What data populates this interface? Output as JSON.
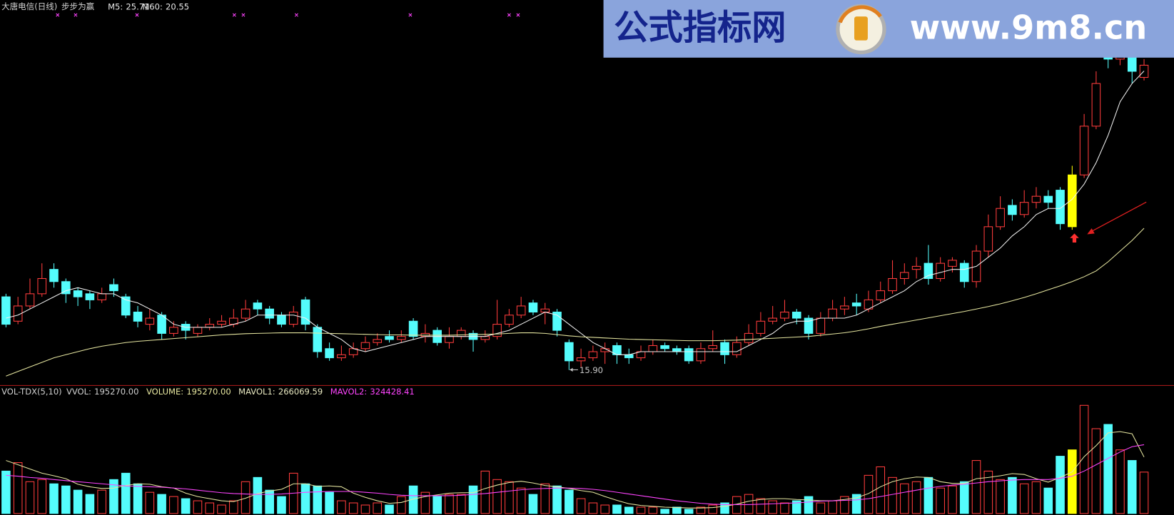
{
  "chart_data": [
    {
      "type": "candlestick",
      "title": "大唐电信(日线)",
      "subtitle": "步步为赢",
      "up_color": "#ff3c3c",
      "down_color": "#54fcfc",
      "highlight_index": 89,
      "highlight_color": "#ffff00",
      "ylim": [
        15.39,
        28.04
      ],
      "low_annotation": "15.90",
      "open": [
        18.3,
        17.5,
        18.0,
        18.4,
        19.2,
        18.8,
        18.5,
        18.4,
        18.2,
        18.7,
        18.3,
        17.8,
        17.4,
        17.7,
        17.1,
        17.4,
        17.1,
        17.3,
        17.4,
        17.4,
        17.6,
        18.1,
        17.9,
        17.7,
        17.4,
        18.2,
        17.3,
        16.6,
        16.3,
        16.4,
        16.6,
        16.8,
        17.0,
        16.9,
        17.5,
        17.0,
        17.2,
        16.8,
        17.0,
        17.1,
        16.9,
        17.0,
        17.4,
        17.7,
        18.1,
        17.8,
        17.8,
        16.8,
        16.2,
        16.3,
        16.5,
        16.7,
        16.4,
        16.3,
        16.5,
        16.7,
        16.6,
        16.6,
        16.2,
        16.6,
        16.8,
        16.4,
        16.8,
        17.1,
        17.5,
        17.6,
        17.8,
        17.6,
        17.1,
        17.6,
        17.9,
        18.1,
        17.9,
        18.2,
        18.5,
        18.9,
        19.2,
        19.4,
        18.9,
        19.3,
        19.4,
        18.8,
        19.8,
        20.6,
        21.3,
        21.0,
        21.4,
        21.6,
        21.8,
        20.6,
        22.3,
        23.9,
        26.9,
        26.1,
        26.9,
        25.5
      ],
      "high": [
        18.4,
        18.3,
        18.9,
        19.4,
        19.4,
        18.9,
        18.6,
        18.5,
        18.6,
        18.9,
        18.4,
        18.0,
        17.9,
        17.8,
        17.5,
        17.5,
        17.4,
        17.6,
        17.7,
        17.9,
        18.2,
        18.2,
        18.0,
        17.8,
        18.0,
        18.3,
        17.4,
        16.8,
        16.7,
        16.8,
        17.0,
        17.1,
        17.2,
        17.2,
        17.6,
        17.4,
        17.3,
        17.3,
        17.3,
        17.2,
        17.2,
        18.2,
        17.9,
        18.3,
        18.2,
        18.1,
        17.9,
        16.9,
        16.6,
        16.7,
        16.8,
        16.8,
        16.6,
        16.7,
        16.9,
        16.8,
        16.7,
        16.7,
        16.8,
        17.2,
        16.9,
        17.0,
        17.4,
        17.8,
        18.0,
        18.2,
        17.9,
        17.7,
        17.8,
        18.2,
        18.3,
        18.4,
        18.5,
        18.8,
        19.5,
        19.4,
        19.6,
        20.0,
        19.6,
        19.6,
        19.5,
        20.0,
        21.0,
        21.6,
        21.5,
        21.8,
        21.9,
        21.8,
        21.9,
        22.6,
        24.3,
        25.7,
        27.2,
        27.0,
        27.1,
        26.1
      ],
      "low": [
        17.3,
        17.4,
        17.9,
        18.3,
        18.6,
        18.1,
        18.0,
        17.9,
        18.1,
        18.3,
        17.6,
        17.3,
        17.2,
        16.9,
        17.0,
        16.9,
        17.0,
        17.2,
        17.3,
        17.3,
        17.5,
        17.7,
        17.4,
        17.3,
        17.3,
        17.2,
        16.3,
        16.2,
        16.2,
        16.3,
        16.5,
        16.7,
        16.8,
        16.8,
        16.9,
        16.8,
        16.7,
        16.6,
        16.9,
        16.5,
        16.8,
        16.9,
        17.3,
        17.6,
        17.7,
        17.4,
        17.0,
        15.9,
        16.0,
        16.2,
        16.1,
        16.1,
        16.1,
        16.2,
        16.4,
        16.5,
        16.4,
        16.1,
        16.1,
        16.5,
        16.1,
        16.3,
        16.7,
        17.0,
        17.4,
        17.5,
        17.4,
        16.9,
        17.0,
        17.5,
        17.7,
        17.7,
        17.8,
        18.1,
        18.4,
        18.7,
        18.9,
        18.7,
        18.8,
        19.1,
        18.6,
        18.6,
        19.6,
        20.5,
        20.8,
        20.9,
        21.2,
        21.2,
        20.5,
        20.5,
        22.2,
        23.8,
        25.8,
        25.9,
        25.3,
        25.4
      ],
      "close": [
        17.4,
        18.0,
        18.4,
        18.9,
        18.8,
        18.4,
        18.3,
        18.2,
        18.4,
        18.5,
        17.7,
        17.5,
        17.6,
        17.1,
        17.3,
        17.2,
        17.3,
        17.4,
        17.5,
        17.6,
        17.9,
        17.9,
        17.6,
        17.4,
        17.8,
        17.4,
        16.5,
        16.3,
        16.4,
        16.6,
        16.8,
        16.9,
        16.9,
        17.0,
        17.0,
        17.1,
        16.8,
        17.0,
        17.2,
        16.9,
        17.0,
        17.4,
        17.7,
        18.0,
        17.8,
        17.9,
        17.2,
        16.2,
        16.3,
        16.5,
        16.6,
        16.4,
        16.3,
        16.5,
        16.7,
        16.6,
        16.5,
        16.2,
        16.6,
        16.7,
        16.4,
        16.8,
        17.1,
        17.5,
        17.6,
        17.8,
        17.6,
        17.1,
        17.6,
        17.9,
        18.0,
        18.0,
        18.2,
        18.5,
        18.9,
        19.1,
        19.3,
        18.9,
        19.4,
        19.5,
        18.8,
        19.8,
        20.6,
        21.2,
        21.0,
        21.4,
        21.6,
        21.4,
        20.7,
        22.3,
        23.9,
        25.3,
        26.1,
        26.7,
        25.7,
        25.9
      ],
      "series": [
        {
          "name": "M5:",
          "current": "25.71",
          "color": "#f0f0f0",
          "values": [
            17.6,
            17.7,
            17.9,
            18.1,
            18.3,
            18.5,
            18.6,
            18.5,
            18.4,
            18.4,
            18.2,
            18.1,
            17.9,
            17.7,
            17.4,
            17.3,
            17.3,
            17.3,
            17.3,
            17.4,
            17.5,
            17.7,
            17.7,
            17.7,
            17.7,
            17.6,
            17.3,
            17.1,
            16.9,
            16.6,
            16.5,
            16.6,
            16.7,
            16.8,
            16.9,
            17.0,
            17.0,
            17.0,
            17.0,
            17.0,
            17.0,
            17.1,
            17.2,
            17.4,
            17.6,
            17.8,
            17.7,
            17.4,
            17.1,
            16.8,
            16.6,
            16.4,
            16.4,
            16.5,
            16.5,
            16.5,
            16.5,
            16.5,
            16.5,
            16.5,
            16.5,
            16.5,
            16.7,
            16.9,
            17.1,
            17.4,
            17.5,
            17.5,
            17.6,
            17.6,
            17.6,
            17.7,
            17.9,
            18.1,
            18.3,
            18.5,
            18.8,
            19.0,
            19.1,
            19.2,
            19.2,
            19.3,
            19.6,
            19.9,
            20.3,
            20.6,
            21.0,
            21.2,
            21.2,
            21.5,
            22.0,
            22.7,
            23.6,
            24.7,
            25.3,
            25.71
          ]
        },
        {
          "name": "M60:",
          "current": "20.55",
          "color": "#e6e6a0",
          "values": [
            15.7,
            15.85,
            16.0,
            16.15,
            16.3,
            16.4,
            16.5,
            16.6,
            16.68,
            16.74,
            16.8,
            16.84,
            16.87,
            16.9,
            16.93,
            16.96,
            16.99,
            17.02,
            17.05,
            17.07,
            17.09,
            17.1,
            17.11,
            17.12,
            17.12,
            17.12,
            17.11,
            17.1,
            17.09,
            17.08,
            17.07,
            17.06,
            17.05,
            17.05,
            17.04,
            17.04,
            17.04,
            17.04,
            17.05,
            17.06,
            17.07,
            17.08,
            17.1,
            17.12,
            17.12,
            17.1,
            17.06,
            17.02,
            16.99,
            16.97,
            16.95,
            16.93,
            16.91,
            16.9,
            16.89,
            16.88,
            16.87,
            16.86,
            16.86,
            16.86,
            16.87,
            16.88,
            16.9,
            16.92,
            16.94,
            16.96,
            16.98,
            17.0,
            17.04,
            17.08,
            17.12,
            17.18,
            17.25,
            17.33,
            17.4,
            17.47,
            17.54,
            17.61,
            17.68,
            17.75,
            17.82,
            17.9,
            17.98,
            18.07,
            18.17,
            18.28,
            18.4,
            18.53,
            18.66,
            18.8,
            18.96,
            19.15,
            19.45,
            19.8,
            20.15,
            20.55
          ]
        }
      ]
    },
    {
      "type": "bar",
      "title": "VOL-TDX(5,10)",
      "ylim": [
        0,
        540000
      ],
      "readout": {
        "name": "VVOL:",
        "current": "195270.00"
      },
      "name": "VOLUME:",
      "current": "195270.00",
      "values": [
        200000,
        240000,
        150000,
        160000,
        140000,
        130000,
        110000,
        90000,
        110000,
        160000,
        190000,
        140000,
        100000,
        90000,
        80000,
        70000,
        60000,
        50000,
        40000,
        60000,
        150000,
        170000,
        110000,
        80000,
        190000,
        140000,
        130000,
        100000,
        60000,
        50000,
        40000,
        50000,
        40000,
        80000,
        130000,
        100000,
        80000,
        90000,
        90000,
        130000,
        200000,
        160000,
        150000,
        120000,
        90000,
        140000,
        130000,
        110000,
        70000,
        50000,
        40000,
        40000,
        30000,
        30000,
        30000,
        20000,
        30000,
        20000,
        30000,
        40000,
        50000,
        80000,
        90000,
        70000,
        60000,
        50000,
        60000,
        80000,
        50000,
        60000,
        80000,
        90000,
        180000,
        220000,
        170000,
        140000,
        150000,
        170000,
        120000,
        130000,
        150000,
        250000,
        200000,
        160000,
        170000,
        140000,
        150000,
        120000,
        270000,
        300000,
        510000,
        400000,
        420000,
        300000,
        250000,
        195270
      ],
      "series": [
        {
          "name": "MAVOL1:",
          "current": "266069.59",
          "color": "#e6e6a0",
          "values": [
            250000,
            230000,
            210000,
            190000,
            178000,
            164000,
            138000,
            126000,
            118000,
            120000,
            132000,
            140000,
            138000,
            126000,
            120000,
            96000,
            80000,
            70000,
            60000,
            56000,
            72000,
            94000,
            106000,
            114000,
            140000,
            140000,
            128000,
            130000,
            126000,
            96000,
            76000,
            60000,
            48000,
            52000,
            68000,
            80000,
            88000,
            96000,
            98000,
            98000,
            118000,
            134000,
            146000,
            152000,
            144000,
            132000,
            126000,
            118000,
            108000,
            100000,
            80000,
            62000,
            46000,
            38000,
            34000,
            30000,
            28000,
            26000,
            26000,
            28000,
            34000,
            44000,
            58000,
            66000,
            70000,
            70000,
            66000,
            64000,
            60000,
            60000,
            66000,
            74000,
            94000,
            126000,
            150000,
            164000,
            172000,
            170000,
            150000,
            142000,
            142000,
            164000,
            170000,
            178000,
            188000,
            184000,
            164000,
            148000,
            170000,
            196000,
            268000,
            320000,
            380000,
            386000,
            376000,
            266069.59
          ]
        },
        {
          "name": "MAVOL2:",
          "current": "324428.41",
          "color": "#ff44ff",
          "values": [
            180000,
            176000,
            170000,
            166000,
            160000,
            155000,
            150000,
            145000,
            140000,
            135000,
            130000,
            128000,
            126000,
            124000,
            120000,
            116000,
            110000,
            104000,
            98000,
            94000,
            92000,
            90000,
            90000,
            92000,
            96000,
            100000,
            102000,
            104000,
            104000,
            104000,
            100000,
            96000,
            90000,
            86000,
            84000,
            84000,
            84000,
            84000,
            86000,
            90000,
            94000,
            100000,
            106000,
            112000,
            116000,
            118000,
            120000,
            120000,
            118000,
            114000,
            108000,
            100000,
            92000,
            84000,
            76000,
            68000,
            60000,
            54000,
            48000,
            44000,
            42000,
            42000,
            42000,
            44000,
            46000,
            48000,
            50000,
            54000,
            58000,
            60000,
            62000,
            64000,
            70000,
            80000,
            90000,
            100000,
            110000,
            120000,
            128000,
            134000,
            138000,
            144000,
            150000,
            154000,
            158000,
            160000,
            160000,
            160000,
            166000,
            176000,
            200000,
            230000,
            260000,
            290000,
            315000,
            324428.41
          ]
        }
      ]
    }
  ],
  "watermark": {
    "title": "公式指标网",
    "url": "www.9m8.cn"
  }
}
